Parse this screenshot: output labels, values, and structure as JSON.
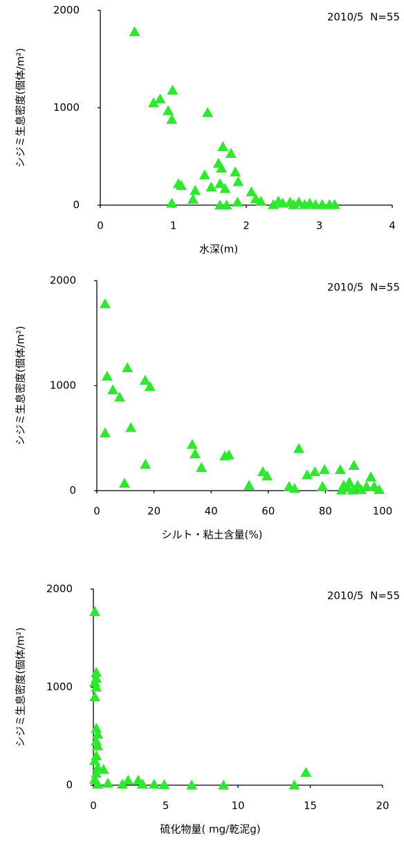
{
  "chart_data": [
    {
      "type": "scatter",
      "annotation": "2010/5  N=55",
      "y_label": "シジミ生息密度(個体/m²)",
      "x_label": "水深(m)",
      "xlim": [
        0,
        4
      ],
      "xticks": [
        0,
        1,
        2,
        3,
        4
      ],
      "ylim": [
        0,
        2000
      ],
      "yticks": [
        0,
        1000,
        2000
      ],
      "color": "#2ee82e",
      "x": [
        0.47,
        0.73,
        0.82,
        0.99,
        0.93,
        0.98,
        1.47,
        1.68,
        1.79,
        1.62,
        1.43,
        1.66,
        1.85,
        1.52,
        1.07,
        1.11,
        1.3,
        1.64,
        1.71,
        1.89,
        1.27,
        0.98,
        1.64,
        1.73,
        1.88,
        2.07,
        2.13,
        2.2,
        2.37,
        2.44,
        2.5,
        2.6,
        2.65,
        2.72,
        2.8,
        2.87,
        2.95,
        3.04,
        3.14,
        3.21
      ],
      "values": [
        1780,
        1050,
        1090,
        1180,
        970,
        880,
        950,
        600,
        530,
        430,
        310,
        380,
        340,
        185,
        220,
        200,
        150,
        220,
        170,
        240,
        60,
        20,
        0,
        0,
        30,
        135,
        65,
        40,
        5,
        40,
        20,
        30,
        5,
        30,
        5,
        20,
        5,
        5,
        5,
        5
      ]
    },
    {
      "type": "scatter",
      "annotation": "2010/5  N=55",
      "y_label": "シジミ生息密度(個体/m²)",
      "x_label": "シルト・粘土含量(%)",
      "xlim": [
        0,
        100
      ],
      "xticks": [
        0,
        20,
        40,
        60,
        80,
        100
      ],
      "ylim": [
        0,
        2000
      ],
      "yticks": [
        0,
        1000,
        2000
      ],
      "color": "#2ee82e",
      "x": [
        2.9,
        2.9,
        3.6,
        5.6,
        8,
        10.7,
        16.9,
        18.6,
        11.9,
        9.7,
        17,
        33.4,
        34.4,
        36.6,
        44.8,
        46.2,
        53.3,
        58.1,
        59.6,
        67.3,
        69.2,
        70.7,
        73.6,
        76.3,
        79,
        79.7,
        85.2,
        86.4,
        87.7,
        88.4,
        90,
        91.3,
        92.5,
        94.4,
        95.9,
        97.1,
        98.8,
        85.7,
        89.6
      ],
      "values": [
        1780,
        550,
        1090,
        960,
        890,
        1170,
        1050,
        990,
        600,
        70,
        250,
        440,
        350,
        220,
        330,
        340,
        50,
        180,
        140,
        40,
        20,
        400,
        150,
        180,
        40,
        200,
        200,
        50,
        30,
        80,
        240,
        50,
        10,
        40,
        130,
        40,
        10,
        5,
        5
      ]
    },
    {
      "type": "scatter",
      "annotation": "2010/5  N=55",
      "y_label": "シジミ生息密度(個体/m²)",
      "x_label": "硫化物量( mg/乾泥g)",
      "xlim": [
        0,
        20
      ],
      "xticks": [
        0,
        5,
        10,
        15,
        20
      ],
      "ylim": [
        0,
        2000
      ],
      "yticks": [
        0,
        1000,
        2000
      ],
      "color": "#2ee82e",
      "x": [
        0.1,
        0.2,
        0.2,
        0.1,
        0.2,
        0.1,
        0.2,
        0.3,
        0.2,
        0.3,
        0.2,
        0.1,
        0.3,
        0.2,
        0.1,
        0.3,
        0.7,
        1,
        2,
        2.4,
        3.1,
        3.4,
        4.2,
        4.9,
        6.8,
        9,
        13.9,
        14.7
      ],
      "values": [
        1770,
        1150,
        1090,
        1050,
        1000,
        900,
        580,
        520,
        450,
        400,
        300,
        250,
        180,
        120,
        60,
        10,
        160,
        20,
        10,
        50,
        50,
        10,
        10,
        5,
        0,
        0,
        0,
        130
      ]
    }
  ]
}
